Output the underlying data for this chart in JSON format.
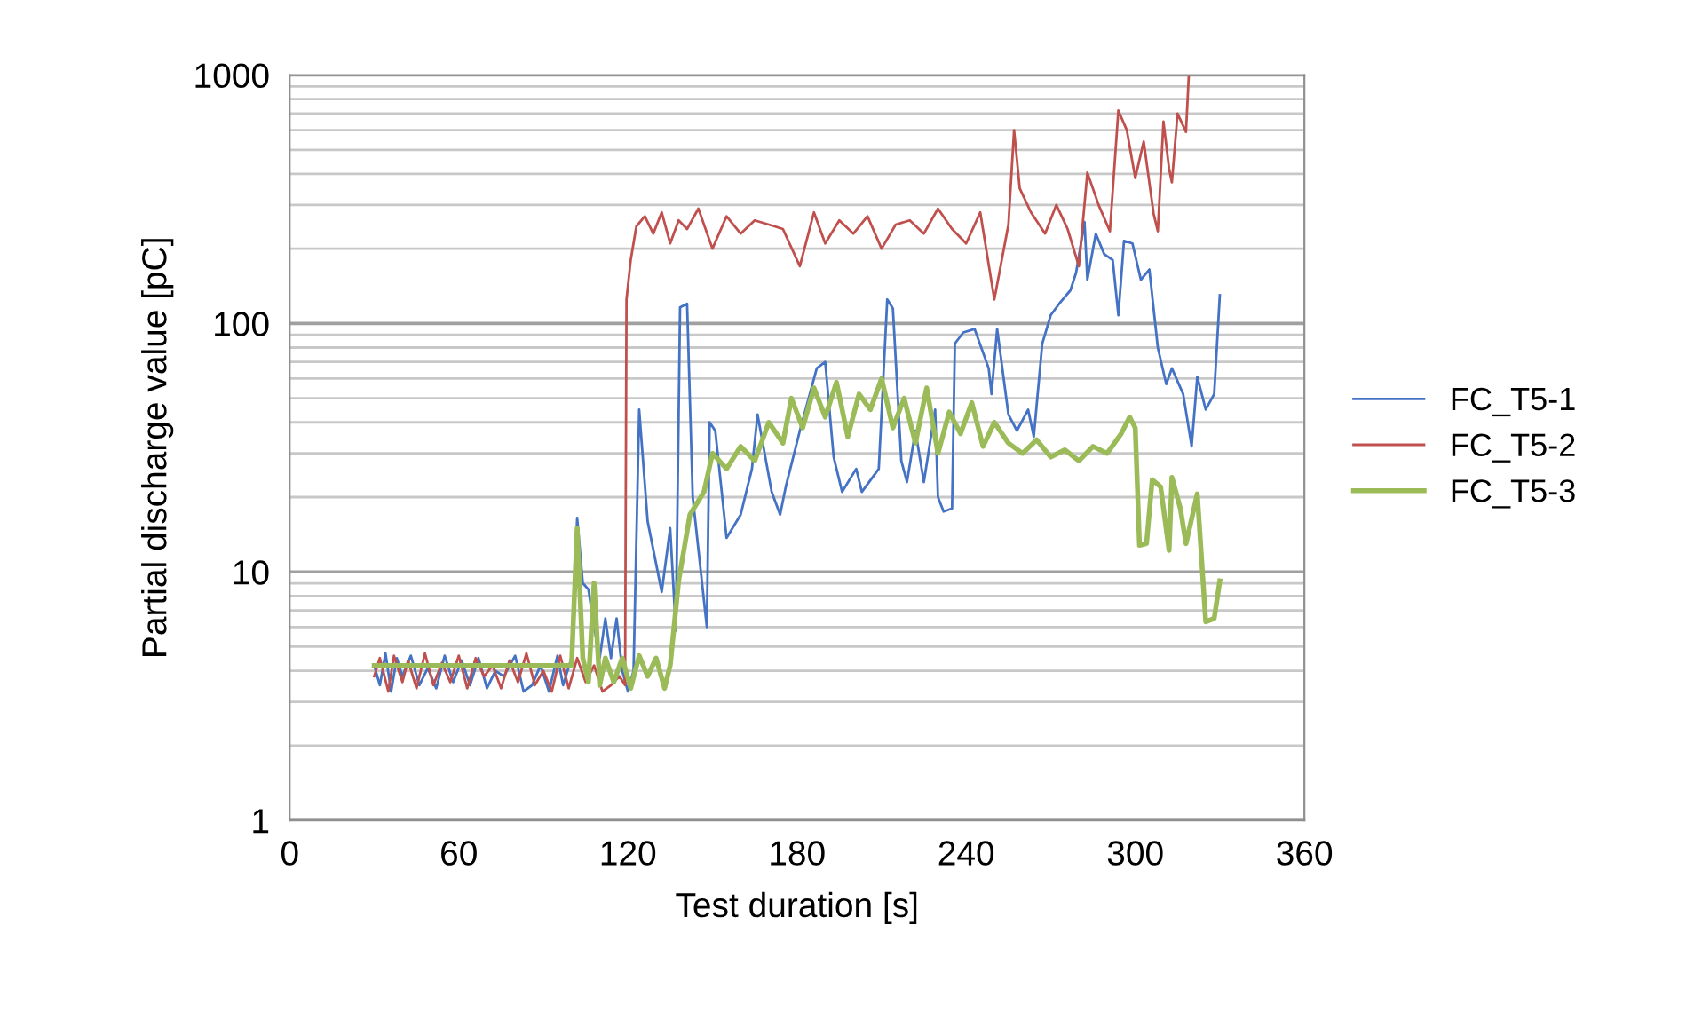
{
  "chart_data": {
    "type": "line",
    "xlabel": "Test duration [s]",
    "ylabel": "Partial discharge value [pC]",
    "xlim": [
      0,
      360
    ],
    "xticks": [
      0,
      60,
      120,
      180,
      240,
      300,
      360
    ],
    "ylim": [
      1,
      1000
    ],
    "yticks": [
      1,
      10,
      100,
      1000
    ],
    "log": true,
    "grid": "y",
    "legend": "right",
    "marker": "none",
    "line_style": "solid",
    "series": [
      {
        "name": "FC_T5-1",
        "color": "#4472c4",
        "x": [
          30,
          32,
          34,
          36,
          38,
          40,
          43,
          46,
          49,
          52,
          55,
          58,
          61,
          64,
          67,
          70,
          73,
          76,
          80,
          83,
          86,
          89,
          92,
          95,
          97,
          100,
          102,
          104,
          106,
          108,
          110,
          112,
          114,
          116,
          118,
          120,
          122,
          124,
          127,
          132,
          135,
          137,
          138.5,
          141,
          143,
          148,
          149,
          151,
          155,
          160,
          164,
          166,
          171,
          174,
          176,
          181,
          187,
          190,
          193,
          196,
          201,
          203,
          209,
          212,
          214,
          217,
          219,
          222,
          225,
          229,
          230,
          232,
          235,
          236,
          239,
          243,
          248,
          249,
          251,
          255,
          258,
          262,
          264,
          267,
          270,
          273,
          277,
          279,
          282,
          283,
          286,
          289,
          292,
          294,
          296,
          299,
          302,
          305,
          308,
          311,
          313,
          317,
          320,
          322,
          325,
          328,
          330
        ],
        "values": [
          4.2,
          3.5,
          4.7,
          3.3,
          4.5,
          3.8,
          4.6,
          3.5,
          4.1,
          3.4,
          4.6,
          3.6,
          4.4,
          3.5,
          4.5,
          3.4,
          4.0,
          3.8,
          4.6,
          3.3,
          3.5,
          4.2,
          3.3,
          4.6,
          3.5,
          4.5,
          16.5,
          9,
          8.5,
          6,
          4.5,
          6.5,
          4.5,
          6.5,
          4.0,
          3.3,
          4.0,
          45,
          16,
          8.3,
          15,
          5.8,
          116,
          120,
          20,
          6,
          40,
          37,
          13.7,
          17,
          26,
          43,
          21,
          17,
          22,
          37,
          66,
          70,
          29,
          21,
          26,
          21,
          26,
          125,
          115,
          28,
          23,
          37,
          23,
          45,
          20,
          17.5,
          18,
          83,
          92,
          95,
          66,
          52,
          95,
          43,
          37,
          45,
          35,
          83,
          108,
          120,
          136,
          160,
          256,
          150,
          230,
          190,
          180,
          108,
          215,
          210,
          150,
          165,
          80,
          57,
          66,
          52,
          32,
          61,
          45,
          52,
          130
        ]
      },
      {
        "name": "FC_T5-2",
        "color": "#c0504d",
        "x": [
          30,
          32,
          35,
          37,
          40,
          42,
          45,
          48,
          51,
          54,
          57,
          60,
          63,
          66,
          69,
          72,
          75,
          78,
          81,
          84,
          87,
          90,
          93,
          96,
          99,
          102,
          105,
          108,
          111,
          114,
          117,
          119,
          119.5,
          121,
          123,
          126,
          129,
          132,
          135,
          138,
          141,
          145,
          150,
          155,
          160,
          165,
          170,
          175,
          181,
          186,
          190,
          195,
          200,
          205,
          210,
          215,
          220,
          225,
          230,
          235,
          240,
          245,
          250,
          255,
          257,
          259,
          263,
          268,
          272,
          276,
          280,
          283,
          287,
          291,
          294,
          297,
          300,
          303,
          306.5,
          308,
          310,
          312,
          313,
          315,
          318,
          319
        ],
        "values": [
          3.8,
          4.5,
          3.3,
          4.6,
          3.6,
          4.4,
          3.4,
          4.7,
          3.5,
          4.3,
          3.6,
          4.6,
          3.4,
          4.5,
          3.8,
          4.2,
          3.4,
          4.4,
          3.6,
          4.7,
          3.5,
          4.0,
          3.3,
          4.6,
          3.4,
          4.5,
          3.6,
          4.2,
          3.3,
          3.5,
          3.8,
          3.5,
          125,
          180,
          246,
          270,
          230,
          280,
          210,
          260,
          240,
          290,
          200,
          270,
          230,
          260,
          250,
          240,
          170,
          280,
          210,
          260,
          230,
          270,
          200,
          250,
          260,
          230,
          290,
          240,
          210,
          280,
          125,
          250,
          600,
          350,
          280,
          230,
          300,
          240,
          170,
          405,
          300,
          235,
          720,
          600,
          385,
          540,
          277,
          235,
          650,
          420,
          370,
          700,
          590,
          1000
        ]
      },
      {
        "name": "FC_T5-3",
        "color": "#9bbb59",
        "x": [
          30,
          60,
          90,
          100,
          102,
          104,
          106,
          108,
          110,
          112,
          115,
          118,
          121,
          124,
          127,
          130,
          133,
          135,
          138,
          142,
          147,
          150,
          155,
          160,
          165,
          170,
          175,
          178,
          182,
          186,
          190,
          194,
          198,
          202,
          206,
          210,
          214,
          218,
          222,
          226,
          230,
          234,
          238,
          242,
          246,
          250,
          255,
          260,
          265,
          270,
          275,
          280,
          285,
          290,
          295,
          298,
          300,
          301.5,
          304,
          306,
          309,
          312,
          313,
          316,
          318,
          322,
          325,
          328,
          330
        ],
        "values": [
          4.2,
          4.2,
          4.2,
          4.2,
          15,
          4.5,
          3.6,
          9,
          3.5,
          4.5,
          3.6,
          4.5,
          3.4,
          4.6,
          3.8,
          4.5,
          3.4,
          4.2,
          9.2,
          17,
          21,
          30,
          26,
          32,
          28,
          40,
          33,
          50,
          38,
          55,
          42,
          58,
          35,
          52,
          45,
          60,
          38,
          50,
          33,
          55,
          30,
          44,
          36,
          48,
          32,
          40,
          33,
          30,
          34,
          29,
          31,
          28,
          32,
          30,
          36,
          42,
          38,
          12.8,
          13,
          23.5,
          22,
          12.2,
          24,
          18,
          13,
          20.6,
          6.3,
          6.5,
          9.2
        ]
      }
    ]
  }
}
